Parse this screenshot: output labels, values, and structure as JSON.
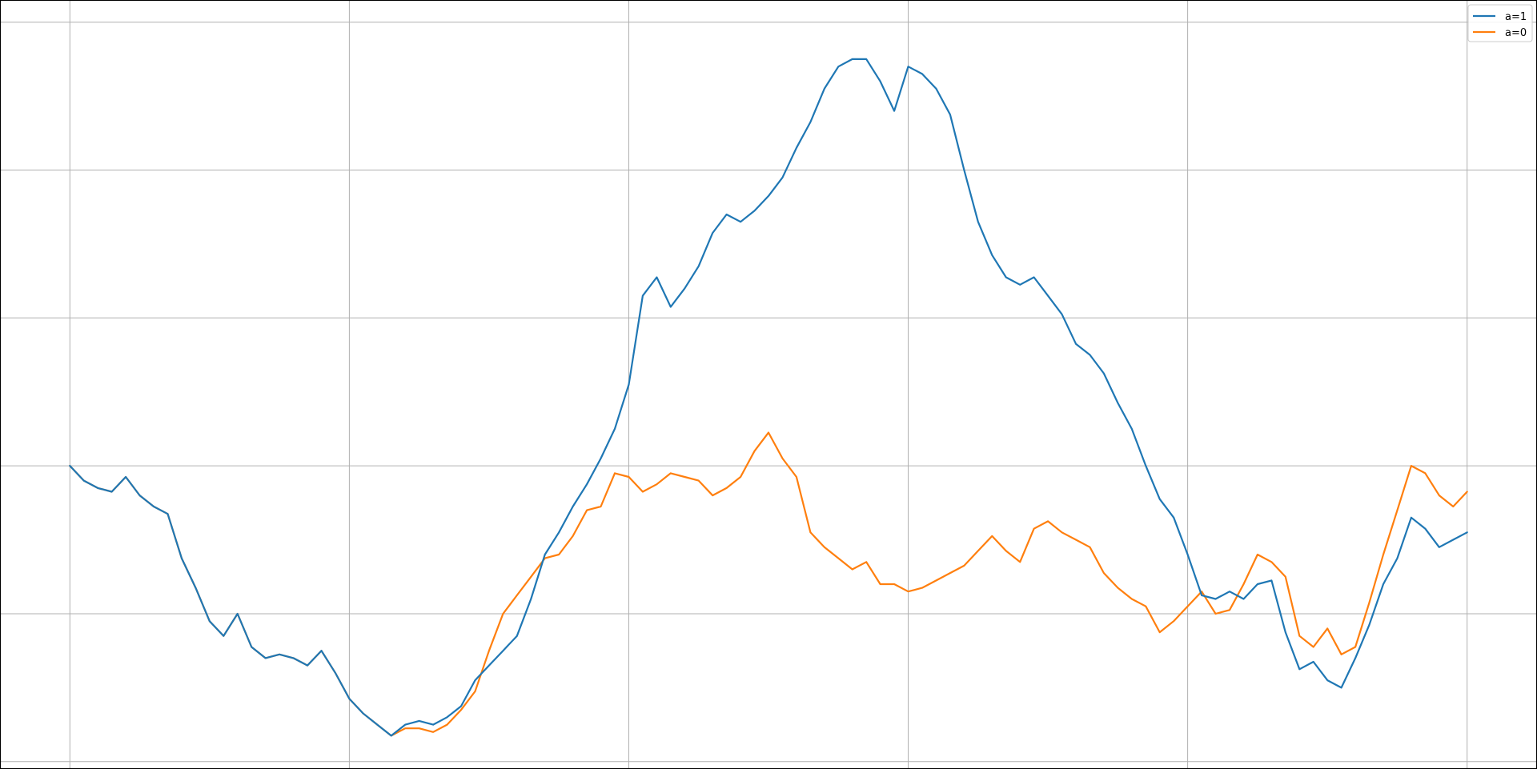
{
  "chart_data": {
    "type": "line",
    "title": "",
    "xlabel": "",
    "ylabel": "",
    "grid": true,
    "legend_position": "top-right",
    "xlim": [
      -2.5,
      52.5
    ],
    "ylim": [
      -8.2,
      12.6
    ],
    "x_ticks": [
      0,
      10,
      20,
      30,
      40,
      50
    ],
    "y_ticks": [
      -8,
      -4,
      0,
      4,
      8,
      12
    ],
    "series": [
      {
        "name": "a=1",
        "color": "#1f77b4",
        "x": [
          0,
          0.5,
          1,
          1.5,
          2,
          2.5,
          3,
          3.5,
          4,
          4.5,
          5,
          5.5,
          6,
          6.5,
          7,
          7.5,
          8,
          8.5,
          9,
          9.5,
          10,
          10.5,
          11,
          11.5,
          12,
          12.5,
          13,
          13.5,
          14,
          14.5,
          15,
          15.5,
          16,
          16.5,
          17,
          17.5,
          18,
          18.5,
          19,
          19.5,
          20,
          20.5,
          21,
          21.5,
          22,
          22.5,
          23,
          23.5,
          24,
          24.5,
          25,
          25.5,
          26,
          26.5,
          27,
          27.5,
          28,
          28.5,
          29,
          29.5,
          30,
          30.5,
          31,
          31.5,
          32,
          32.5,
          33,
          33.5,
          34,
          34.5,
          35,
          35.5,
          36,
          36.5,
          37,
          37.5,
          38,
          38.5,
          39,
          39.5,
          40,
          40.5,
          41,
          41.5,
          42,
          42.5,
          43,
          43.5,
          44,
          44.5,
          45,
          45.5,
          46,
          46.5,
          47,
          47.5,
          48,
          48.5,
          49,
          49.5,
          50
        ],
        "y": [
          0.0,
          -0.4,
          -0.6,
          -0.7,
          -0.3,
          -0.8,
          -1.1,
          -1.3,
          -2.5,
          -3.3,
          -4.2,
          -4.6,
          -4.0,
          -4.9,
          -5.2,
          -5.1,
          -5.2,
          -5.4,
          -5.0,
          -5.6,
          -6.3,
          -6.7,
          -7.0,
          -7.3,
          -7.0,
          -6.9,
          -7.0,
          -6.8,
          -6.5,
          -5.8,
          -5.4,
          -5.0,
          -4.6,
          -3.6,
          -2.4,
          -1.8,
          -1.1,
          -0.5,
          0.2,
          1.0,
          2.2,
          4.6,
          5.1,
          4.3,
          4.8,
          5.4,
          6.3,
          6.8,
          6.6,
          6.9,
          7.3,
          7.8,
          8.6,
          9.3,
          10.2,
          10.8,
          11.0,
          11.0,
          10.4,
          9.6,
          10.8,
          10.6,
          10.2,
          9.5,
          8.0,
          6.6,
          5.7,
          5.1,
          4.9,
          5.1,
          4.6,
          4.1,
          3.3,
          3.0,
          2.5,
          1.7,
          1.0,
          0.0,
          -0.9,
          -1.4,
          -2.4,
          -3.5,
          -3.6,
          -3.4,
          -3.6,
          -3.2,
          -3.1,
          -4.5,
          -5.5,
          -5.3,
          -5.8,
          -6.0,
          -5.2,
          -4.3,
          -3.2,
          -2.5,
          -1.4,
          -1.7,
          -2.2,
          -2.0,
          -1.8
        ]
      },
      {
        "name": "a=0",
        "color": "#ff7f0e",
        "x": [
          0,
          0.5,
          1,
          1.5,
          2,
          2.5,
          3,
          3.5,
          4,
          4.5,
          5,
          5.5,
          6,
          6.5,
          7,
          7.5,
          8,
          8.5,
          9,
          9.5,
          10,
          10.5,
          11,
          11.5,
          12,
          12.5,
          13,
          13.5,
          14,
          14.5,
          15,
          15.5,
          16,
          16.5,
          17,
          17.5,
          18,
          18.5,
          19,
          19.5,
          20,
          20.5,
          21,
          21.5,
          22,
          22.5,
          23,
          23.5,
          24,
          24.5,
          25,
          25.5,
          26,
          26.5,
          27,
          27.5,
          28,
          28.5,
          29,
          29.5,
          30,
          30.5,
          31,
          31.5,
          32,
          32.5,
          33,
          33.5,
          34,
          34.5,
          35,
          35.5,
          36,
          36.5,
          37,
          37.5,
          38,
          38.5,
          39,
          39.5,
          40,
          40.5,
          41,
          41.5,
          42,
          42.5,
          43,
          43.5,
          44,
          44.5,
          45,
          45.5,
          46,
          46.5,
          47,
          47.5,
          48,
          48.5,
          49,
          49.5,
          50
        ],
        "y": [
          0.0,
          -0.4,
          -0.6,
          -0.7,
          -0.3,
          -0.8,
          -1.1,
          -1.3,
          -2.5,
          -3.3,
          -4.2,
          -4.6,
          -4.0,
          -4.9,
          -5.2,
          -5.1,
          -5.2,
          -5.4,
          -5.0,
          -5.6,
          -6.3,
          -6.7,
          -7.0,
          -7.3,
          -7.1,
          -7.1,
          -7.2,
          -7.0,
          -6.6,
          -6.1,
          -5.0,
          -4.0,
          -3.5,
          -3.0,
          -2.5,
          -2.4,
          -1.9,
          -1.2,
          -1.1,
          -0.2,
          -0.3,
          -0.7,
          -0.5,
          -0.2,
          -0.3,
          -0.4,
          -0.8,
          -0.6,
          -0.3,
          0.4,
          0.9,
          0.2,
          -0.3,
          -1.8,
          -2.2,
          -2.5,
          -2.8,
          -2.6,
          -3.2,
          -3.2,
          -3.4,
          -3.3,
          -3.1,
          -2.9,
          -2.7,
          -2.3,
          -1.9,
          -2.3,
          -2.6,
          -1.7,
          -1.5,
          -1.8,
          -2.0,
          -2.2,
          -2.9,
          -3.3,
          -3.6,
          -3.8,
          -4.5,
          -4.2,
          -3.8,
          -3.4,
          -4.0,
          -3.9,
          -3.2,
          -2.4,
          -2.6,
          -3.0,
          -4.6,
          -4.9,
          -4.4,
          -5.1,
          -4.9,
          -3.7,
          -2.4,
          -1.2,
          0.0,
          -0.2,
          -0.8,
          -1.1,
          -0.7
        ]
      }
    ]
  }
}
